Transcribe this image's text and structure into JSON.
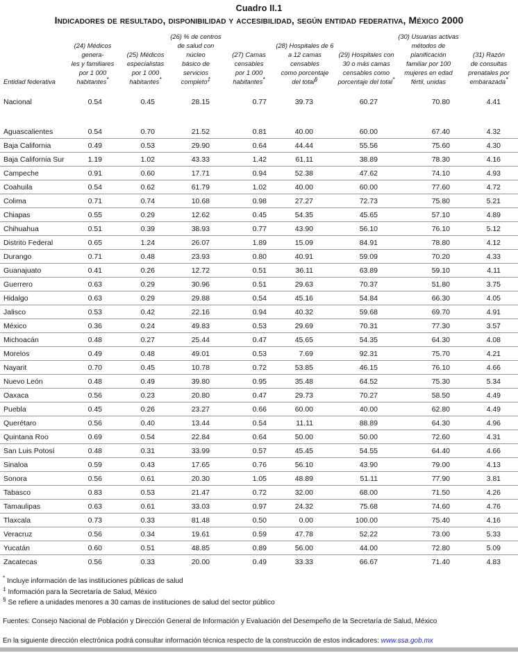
{
  "title": "Cuadro II.1",
  "subtitle": "Indicadores de resultado, disponibilidad y accesibilidad, según entidad federativa, México 2000",
  "colors": {
    "link": "#1a1ae6",
    "divider_bar": "#b5b5b5",
    "row_rule": "#969696"
  },
  "table": {
    "row_header_label": "Entidad federativa",
    "columns": [
      {
        "lines": [
          "(24) Médicos genera-",
          "les y familiares",
          "por 1 000",
          "habitantes"
        ],
        "marker": "*"
      },
      {
        "lines": [
          "(25) Médicos",
          "especialistas",
          "por 1 000",
          "habitantes"
        ],
        "marker": "*"
      },
      {
        "lines": [
          "(26) % de centros",
          "de salud con núcleo",
          "básico de servicios",
          "completo"
        ],
        "marker": "‡"
      },
      {
        "lines": [
          "(27) Camas",
          "censables",
          "por 1 000",
          "habitantes"
        ],
        "marker": "*"
      },
      {
        "lines": [
          "(28) Hospitales de 6",
          "a 12 camas censables",
          "como porcentaje",
          "del total"
        ],
        "marker": "§"
      },
      {
        "lines": [
          "(29) Hospitales con",
          "30 o más camas",
          "censables como",
          "porcentaje del total"
        ],
        "marker": "*"
      },
      {
        "lines": [
          "(30) Usuarias activas",
          "métodos de planificación",
          "familiar por 100",
          "mujeres en edad",
          "fértil, unidas"
        ],
        "marker": ""
      },
      {
        "lines": [
          "(31) Razón",
          "de consultas",
          "prenatales por",
          "embarazada"
        ],
        "marker": "*"
      }
    ],
    "national": {
      "name": "Nacional",
      "values": [
        "0.54",
        "0.45",
        "28.15",
        "0.77",
        "39.73",
        "60.27",
        "70.80",
        "4.41"
      ]
    },
    "rows": [
      {
        "name": "Aguascalientes",
        "values": [
          "0.54",
          "0.70",
          "21.52",
          "0.81",
          "40.00",
          "60.00",
          "67.40",
          "4.32"
        ]
      },
      {
        "name": "Baja California",
        "values": [
          "0.49",
          "0.53",
          "29.90",
          "0.64",
          "44.44",
          "55.56",
          "75.60",
          "4.30"
        ]
      },
      {
        "name": "Baja California Sur",
        "values": [
          "1.19",
          "1.02",
          "43.33",
          "1.42",
          "61.11",
          "38.89",
          "78.30",
          "4.16"
        ]
      },
      {
        "name": "Campeche",
        "values": [
          "0.91",
          "0.60",
          "17.71",
          "0.94",
          "52.38",
          "47.62",
          "74.10",
          "4.93"
        ]
      },
      {
        "name": "Coahuila",
        "values": [
          "0.54",
          "0.62",
          "61.79",
          "1.02",
          "40.00",
          "60.00",
          "77.60",
          "4.72"
        ]
      },
      {
        "name": "Colima",
        "values": [
          "0.71",
          "0.74",
          "10.68",
          "0.98",
          "27.27",
          "72.73",
          "75.80",
          "5.21"
        ]
      },
      {
        "name": "Chiapas",
        "values": [
          "0.55",
          "0.29",
          "12.62",
          "0.45",
          "54.35",
          "45.65",
          "57.10",
          "4.89"
        ]
      },
      {
        "name": "Chihuahua",
        "values": [
          "0.51",
          "0.39",
          "38.93",
          "0.77",
          "43.90",
          "56.10",
          "76.10",
          "5.12"
        ]
      },
      {
        "name": "Distrito Federal",
        "values": [
          "0.65",
          "1.24",
          "26.07",
          "1.89",
          "15.09",
          "84.91",
          "78.80",
          "4.12"
        ]
      },
      {
        "name": "Durango",
        "values": [
          "0.71",
          "0.48",
          "23.93",
          "0.80",
          "40.91",
          "59.09",
          "70.20",
          "4.33"
        ]
      },
      {
        "name": "Guanajuato",
        "values": [
          "0.41",
          "0.26",
          "12.72",
          "0.51",
          "36.11",
          "63.89",
          "59.10",
          "4.11"
        ]
      },
      {
        "name": "Guerrero",
        "values": [
          "0.63",
          "0.29",
          "30.96",
          "0.51",
          "29.63",
          "70.37",
          "51.80",
          "3.75"
        ]
      },
      {
        "name": "Hidalgo",
        "values": [
          "0.63",
          "0.29",
          "29.88",
          "0.54",
          "45.16",
          "54.84",
          "66.30",
          "4.05"
        ]
      },
      {
        "name": "Jalisco",
        "values": [
          "0.53",
          "0.42",
          "22.16",
          "0.94",
          "40.32",
          "59.68",
          "69.70",
          "4.91"
        ]
      },
      {
        "name": "México",
        "values": [
          "0.36",
          "0.24",
          "49.83",
          "0.53",
          "29.69",
          "70.31",
          "77.30",
          "3.57"
        ]
      },
      {
        "name": "Michoacán",
        "values": [
          "0.48",
          "0.27",
          "25.44",
          "0.47",
          "45.65",
          "54.35",
          "64.30",
          "4.08"
        ]
      },
      {
        "name": "Morelos",
        "values": [
          "0.49",
          "0.48",
          "49.01",
          "0.53",
          "7.69",
          "92.31",
          "75.70",
          "4.21"
        ]
      },
      {
        "name": "Nayarit",
        "values": [
          "0.70",
          "0.45",
          "10.78",
          "0.72",
          "53.85",
          "46.15",
          "76.10",
          "4.66"
        ]
      },
      {
        "name": "Nuevo León",
        "values": [
          "0.48",
          "0.49",
          "39.80",
          "0.95",
          "35.48",
          "64.52",
          "75.30",
          "5.34"
        ]
      },
      {
        "name": "Oaxaca",
        "values": [
          "0.56",
          "0.23",
          "20.80",
          "0.47",
          "29.73",
          "70.27",
          "58.50",
          "4.49"
        ]
      },
      {
        "name": "Puebla",
        "values": [
          "0.45",
          "0.26",
          "23.27",
          "0.66",
          "60.00",
          "40.00",
          "62.80",
          "4.49"
        ]
      },
      {
        "name": "Querétaro",
        "values": [
          "0.56",
          "0.40",
          "13.44",
          "0.54",
          "11.11",
          "88.89",
          "64.30",
          "4.96"
        ]
      },
      {
        "name": "Quintana Roo",
        "values": [
          "0.69",
          "0.54",
          "22.84",
          "0.64",
          "50.00",
          "50.00",
          "72.60",
          "4.31"
        ]
      },
      {
        "name": "San Luis Potosí",
        "values": [
          "0.48",
          "0.31",
          "33.99",
          "0.57",
          "45.45",
          "54.55",
          "64.40",
          "4.66"
        ]
      },
      {
        "name": "Sinaloa",
        "values": [
          "0.59",
          "0.43",
          "17.65",
          "0.76",
          "56.10",
          "43.90",
          "79.00",
          "4.13"
        ]
      },
      {
        "name": "Sonora",
        "values": [
          "0.56",
          "0.61",
          "20.30",
          "1.05",
          "48.89",
          "51.11",
          "77.90",
          "3.81"
        ]
      },
      {
        "name": "Tabasco",
        "values": [
          "0.83",
          "0.53",
          "21.47",
          "0.72",
          "32.00",
          "68.00",
          "71.50",
          "4.26"
        ]
      },
      {
        "name": "Tamaulipas",
        "values": [
          "0.63",
          "0.61",
          "33.03",
          "0.97",
          "24.32",
          "75.68",
          "74.60",
          "4.76"
        ]
      },
      {
        "name": "Tlaxcala",
        "values": [
          "0.73",
          "0.33",
          "81.48",
          "0.50",
          "0.00",
          "100.00",
          "75.40",
          "4.16"
        ]
      },
      {
        "name": "Veracruz",
        "values": [
          "0.56",
          "0.34",
          "19.61",
          "0.59",
          "47.78",
          "52.22",
          "73.00",
          "5.33"
        ]
      },
      {
        "name": "Yucatán",
        "values": [
          "0.60",
          "0.51",
          "48.85",
          "0.89",
          "56.00",
          "44.00",
          "72.80",
          "5.09"
        ]
      },
      {
        "name": "Zacatecas",
        "values": [
          "0.56",
          "0.33",
          "20.00",
          "0.49",
          "33.33",
          "66.67",
          "71.40",
          "4.83"
        ]
      }
    ]
  },
  "footnotes": [
    {
      "marker": "*",
      "text": "Incluye información de las instituciones públicas de salud"
    },
    {
      "marker": "‡",
      "text": "Información para la Secretaría de Salud, México"
    },
    {
      "marker": "§",
      "text": "Se refiere a unidades menores a 30 camas de instituciones de salud del sector público"
    }
  ],
  "sources": "Fuentes: Consejo Nacional de Población y Dirección General de Información y Evaluación del Desempeño de la Secretaría de Salud, México",
  "link_note": "En la siguiente dirección electrónica podrá consultar información técnica respecto de la construcción de estos indicadores:",
  "link": "www.ssa.gob.mx"
}
